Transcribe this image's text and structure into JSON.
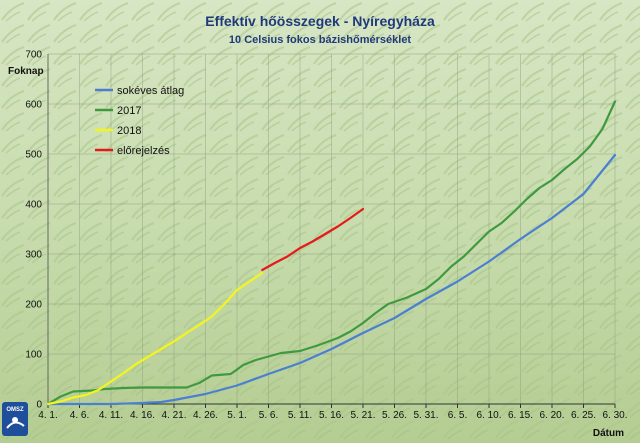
{
  "chart_data": {
    "type": "line",
    "title": "Effektív hőösszegek - Nyíregyháza",
    "subtitle": "10 Celsius fokos bázishőmérséklet",
    "ylabel": "Foknap",
    "xlabel": "Dátum",
    "ylim": [
      0,
      700
    ],
    "yticks": [
      0,
      100,
      200,
      300,
      400,
      500,
      600,
      700
    ],
    "x_range": [
      0,
      90
    ],
    "xticks": [
      {
        "label": "4. 1.",
        "x": 0
      },
      {
        "label": "4. 6.",
        "x": 5
      },
      {
        "label": "4. 11.",
        "x": 10
      },
      {
        "label": "4. 16.",
        "x": 15
      },
      {
        "label": "4. 21.",
        "x": 20
      },
      {
        "label": "4. 26.",
        "x": 25
      },
      {
        "label": "5. 1.",
        "x": 30
      },
      {
        "label": "5. 6.",
        "x": 35
      },
      {
        "label": "5. 11.",
        "x": 40
      },
      {
        "label": "5. 16.",
        "x": 45
      },
      {
        "label": "5. 21.",
        "x": 50
      },
      {
        "label": "5. 26.",
        "x": 55
      },
      {
        "label": "5. 31.",
        "x": 60
      },
      {
        "label": "6. 5.",
        "x": 65
      },
      {
        "label": "6. 10.",
        "x": 70
      },
      {
        "label": "6. 15.",
        "x": 75
      },
      {
        "label": "6. 20.",
        "x": 80
      },
      {
        "label": "6. 25.",
        "x": 85
      },
      {
        "label": "6. 30.",
        "x": 90
      }
    ],
    "grid": true,
    "legend_position": "top-left",
    "series": [
      {
        "name": "sokéves átlag",
        "color": "#4a7fd1",
        "points": [
          [
            0,
            0
          ],
          [
            10,
            0
          ],
          [
            15,
            2
          ],
          [
            18,
            4
          ],
          [
            20,
            8
          ],
          [
            25,
            20
          ],
          [
            30,
            37
          ],
          [
            35,
            60
          ],
          [
            40,
            82
          ],
          [
            45,
            110
          ],
          [
            50,
            142
          ],
          [
            55,
            172
          ],
          [
            60,
            210
          ],
          [
            65,
            245
          ],
          [
            70,
            285
          ],
          [
            75,
            330
          ],
          [
            80,
            372
          ],
          [
            85,
            420
          ],
          [
            90,
            498
          ]
        ]
      },
      {
        "name": "2017",
        "color": "#3f9a3f",
        "points": [
          [
            0,
            0
          ],
          [
            2,
            15
          ],
          [
            4,
            25
          ],
          [
            7,
            27
          ],
          [
            9,
            30
          ],
          [
            12,
            32
          ],
          [
            15,
            33
          ],
          [
            18,
            33
          ],
          [
            22,
            33
          ],
          [
            24,
            42
          ],
          [
            26,
            57
          ],
          [
            29,
            60
          ],
          [
            31,
            78
          ],
          [
            33,
            88
          ],
          [
            35,
            95
          ],
          [
            37,
            102
          ],
          [
            40,
            106
          ],
          [
            43,
            118
          ],
          [
            46,
            132
          ],
          [
            48,
            145
          ],
          [
            50,
            162
          ],
          [
            52,
            182
          ],
          [
            54,
            200
          ],
          [
            57,
            213
          ],
          [
            60,
            230
          ],
          [
            62,
            250
          ],
          [
            64,
            275
          ],
          [
            66,
            295
          ],
          [
            68,
            320
          ],
          [
            70,
            345
          ],
          [
            72,
            362
          ],
          [
            74,
            385
          ],
          [
            76,
            410
          ],
          [
            78,
            432
          ],
          [
            80,
            448
          ],
          [
            82,
            470
          ],
          [
            84,
            490
          ],
          [
            86,
            515
          ],
          [
            88,
            550
          ],
          [
            90,
            605
          ]
        ]
      },
      {
        "name": "2018",
        "color": "#f5f51e",
        "points": [
          [
            0,
            0
          ],
          [
            2,
            5
          ],
          [
            4,
            13
          ],
          [
            6,
            18
          ],
          [
            8,
            28
          ],
          [
            10,
            45
          ],
          [
            12,
            62
          ],
          [
            14,
            80
          ],
          [
            16,
            95
          ],
          [
            18,
            110
          ],
          [
            20,
            125
          ],
          [
            22,
            142
          ],
          [
            24,
            158
          ],
          [
            26,
            175
          ],
          [
            28,
            200
          ],
          [
            30,
            228
          ],
          [
            32,
            245
          ],
          [
            34,
            262
          ]
        ]
      },
      {
        "name": "előrejelzés",
        "color": "#e31b1b",
        "points": [
          [
            34,
            268
          ],
          [
            36,
            282
          ],
          [
            38,
            295
          ],
          [
            40,
            312
          ],
          [
            42,
            325
          ],
          [
            44,
            340
          ],
          [
            46,
            355
          ],
          [
            48,
            372
          ],
          [
            50,
            390
          ]
        ]
      }
    ]
  },
  "logo": {
    "text": "OMSZ"
  }
}
